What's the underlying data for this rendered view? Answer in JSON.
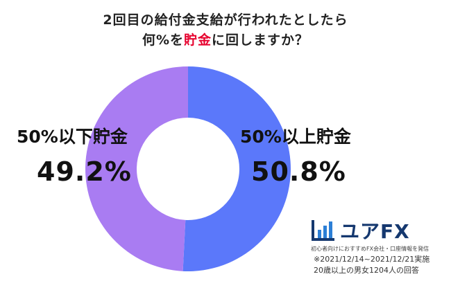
{
  "title_line1": "2回目の給付金支給が行われたとしたら",
  "title_line2_prefix": "何%を",
  "title_line2_highlight": "貯金",
  "title_line2_suffix": "に回しますか？",
  "colors": {
    "right_segment": "#5b78fa",
    "left_segment": "#a97cf2",
    "highlight": "#e6002d",
    "logo": "#15386f"
  },
  "chart_data": {
    "type": "pie",
    "donut": true,
    "slices": [
      {
        "label": "50%以上貯金",
        "value": 50.8,
        "display": "50.8%",
        "color": "#5b78fa"
      },
      {
        "label": "50%以下貯金",
        "value": 49.2,
        "display": "49.2%",
        "color": "#a97cf2"
      }
    ]
  },
  "logo": {
    "name": "ユアFX",
    "tagline": "初心者向けにおすすめFX会社・口座情報を発信",
    "icon": "bar-chart-icon"
  },
  "notes": {
    "line1": "※2021/12/14~2021/12/21実施",
    "line2": "20歳以上の男女1204人の回答"
  }
}
